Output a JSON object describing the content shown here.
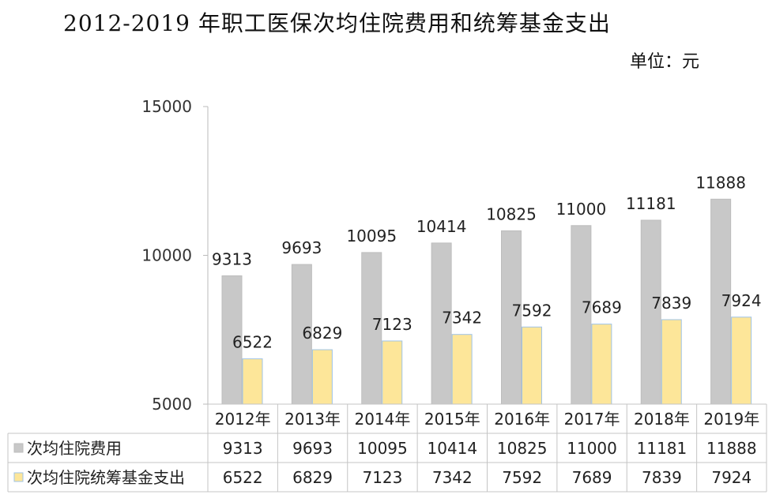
{
  "title": "2012-2019 年职工医保次均住院费用和统筹基金支出",
  "unit_label": "单位：元",
  "chart_data": {
    "type": "bar",
    "categories": [
      "2012年",
      "2013年",
      "2014年",
      "2015年",
      "2016年",
      "2017年",
      "2018年",
      "2019年"
    ],
    "series": [
      {
        "name": "次均住院费用",
        "values": [
          9313,
          9693,
          10095,
          10414,
          10825,
          11000,
          11181,
          11888
        ],
        "color": "#c8c8c8"
      },
      {
        "name": "次均住院统筹基金支出",
        "values": [
          6522,
          6829,
          7123,
          7342,
          7592,
          7689,
          7839,
          7924
        ],
        "color": "#fde699"
      }
    ],
    "y_ticks": [
      5000,
      10000,
      15000
    ],
    "ylim": [
      5000,
      15000
    ],
    "data_table": true,
    "grid": false
  }
}
